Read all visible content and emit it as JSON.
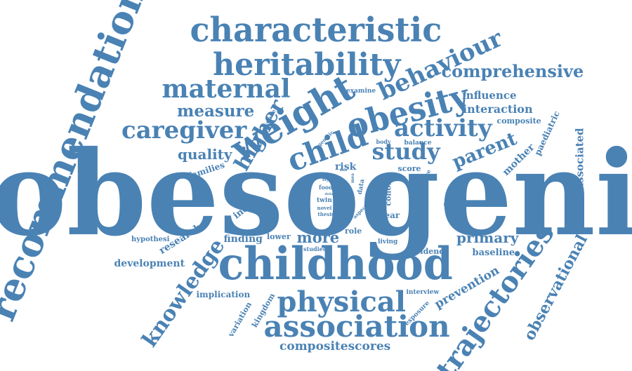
{
  "color": "#4a82b4",
  "words": [
    "obesogenic",
    "childhood",
    "recommendation",
    "characteristic",
    "heritability",
    "obesity",
    "weight",
    "child",
    "association",
    "trajectories",
    "physical",
    "behaviour",
    "maternal",
    "caregiver",
    "activity",
    "study",
    "higher",
    "knowledge",
    "comprehensive",
    "parent",
    "observational",
    "measure",
    "quality",
    "primary",
    "more",
    "compositescores",
    "associated",
    "prevention",
    "interaction",
    "influence",
    "development",
    "finding",
    "research",
    "paediatric",
    "mother",
    "baseline",
    "risk",
    "families",
    "index",
    "implication",
    "role",
    "lower",
    "year",
    "evidence",
    "composite",
    "cohort",
    "kingdom",
    "variation",
    "hypothesi",
    "score",
    "support",
    "living",
    "interview",
    "exposure",
    "examine",
    "studies",
    "balance",
    "body",
    "average",
    "genetic",
    "avenue",
    "food",
    "twin",
    "novel",
    "thesis",
    "data",
    "energy",
    "aspect",
    "style",
    "delay",
    "find",
    "mea"
  ]
}
